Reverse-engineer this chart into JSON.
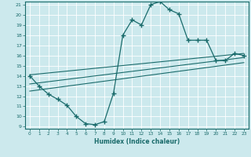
{
  "title": "",
  "xlabel": "Humidex (Indice chaleur)",
  "bg_color": "#cce9ed",
  "line_color": "#1a6b6b",
  "grid_color": "#ffffff",
  "xlim": [
    0,
    23
  ],
  "ylim": [
    9,
    21
  ],
  "yticks": [
    9,
    10,
    11,
    12,
    13,
    14,
    15,
    16,
    17,
    18,
    19,
    20,
    21
  ],
  "xticks": [
    0,
    1,
    2,
    3,
    4,
    5,
    6,
    7,
    8,
    9,
    10,
    11,
    12,
    13,
    14,
    15,
    16,
    17,
    18,
    19,
    20,
    21,
    22,
    23
  ],
  "main_curve_x": [
    0,
    1,
    2,
    3,
    4,
    5,
    6,
    7,
    8,
    9,
    10,
    11,
    12,
    13,
    14,
    15,
    16,
    17,
    18,
    19,
    20,
    21,
    22,
    23
  ],
  "main_curve_y": [
    14.0,
    13.0,
    12.2,
    11.7,
    11.1,
    10.0,
    9.3,
    9.2,
    9.5,
    12.3,
    18.0,
    19.5,
    19.0,
    21.0,
    21.3,
    20.5,
    20.1,
    17.5,
    17.5,
    17.5,
    15.5,
    15.5,
    16.2,
    16.0
  ],
  "line1_x": [
    0,
    23
  ],
  "line1_y": [
    14.1,
    16.2
  ],
  "line2_x": [
    0,
    23
  ],
  "line2_y": [
    13.2,
    15.8
  ],
  "line3_x": [
    0,
    23
  ],
  "line3_y": [
    12.5,
    15.3
  ]
}
